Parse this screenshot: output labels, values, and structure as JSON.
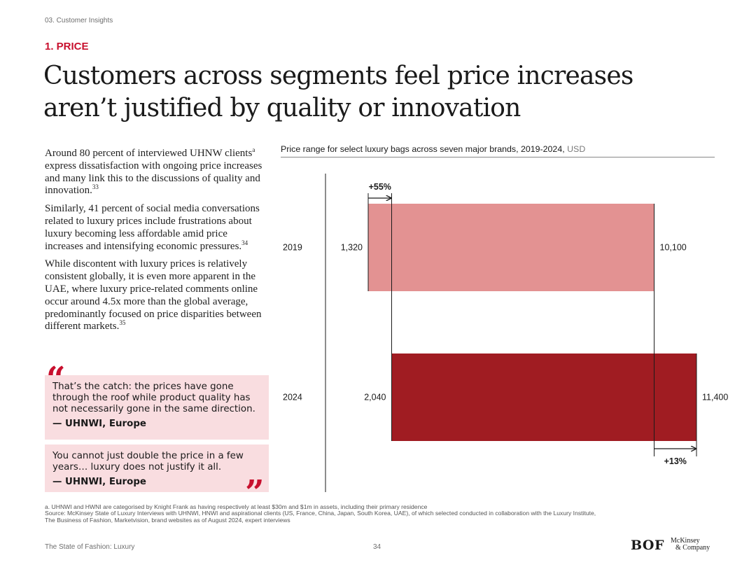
{
  "section": "03. Customer Insights",
  "kicker": "1. PRICE",
  "headline": {
    "line1": "Customers across segments feel price increases",
    "line2": "aren’t justified by quality or innovation"
  },
  "body": {
    "p1": {
      "text": "Around 80 percent of interviewed UHNW clients",
      "fn_a": "a",
      "text2": " express dissatisfaction with ongoing price increases and many link this to the discussions of quality and innovation.",
      "ref": "33"
    },
    "p2": {
      "text": "Similarly, 41 percent of social media conversations related to luxury prices include frustrations about luxury becoming less affordable amid price increases and intensifying economic pressures.",
      "ref": "34"
    },
    "p3": {
      "text": "While discontent with luxury prices is relatively consistent globally, it is even more apparent in the UAE, where luxury price-related comments online occur around 4.5x more than the global average, predominantly focused on price disparities between different markets.",
      "ref": "35"
    }
  },
  "quotes": [
    {
      "text": "That’s the catch: the prices have gone through the roof while product quality has not necessarily gone in the same direction.",
      "attribution": "— UHNWI, Europe"
    },
    {
      "text": "You cannot just double the price in a few years… luxury does not justify it all.",
      "attribution": "— UHNWI, Europe"
    }
  ],
  "quote_marks": {
    "open": "“",
    "close": "”"
  },
  "chart_title": {
    "main": "Price range for select luxury bags across seven major brands, 2019-2024, ",
    "unit": "USD"
  },
  "chart_data": {
    "type": "bar",
    "orientation": "horizontal-range",
    "title": "Price range for select luxury bags across seven major brands, 2019-2024, USD",
    "categories": [
      "2019",
      "2024"
    ],
    "series": [
      {
        "category": "2019",
        "min": 1320,
        "max": 10100,
        "min_label": "1,320",
        "max_label": "10,100",
        "color": "#e39292"
      },
      {
        "category": "2024",
        "min": 2040,
        "max": 11400,
        "min_label": "2,040",
        "max_label": "11,400",
        "color": "#a01c22"
      }
    ],
    "annotations": [
      {
        "label": "+55%",
        "from": 1320,
        "to": 2040,
        "position": "top"
      },
      {
        "label": "+13%",
        "from": 10100,
        "to": 11400,
        "position": "bottom"
      }
    ],
    "grid": false,
    "legend": "none"
  },
  "notes": [
    "a. UHNWI and HWNI are categorised by Knight Frank as having respectively at least $30m and $1m in assets, including their primary residence",
    "Source: McKinsey State of Luxury Interviews with UHNWI, HNWI and aspirational clients (US, France, China, Japan, South Korea, UAE), of which selected conducted in collaboration with the Luxury Institute,",
    "The Business of Fashion, Marketvision, brand websites as of August 2024, expert interviews"
  ],
  "footer": {
    "publication": "The State of Fashion: Luxury",
    "page": "34",
    "bof_logo": "BOF",
    "mck_logo_line1": "McKinsey",
    "mck_logo_line2": "& Company"
  }
}
